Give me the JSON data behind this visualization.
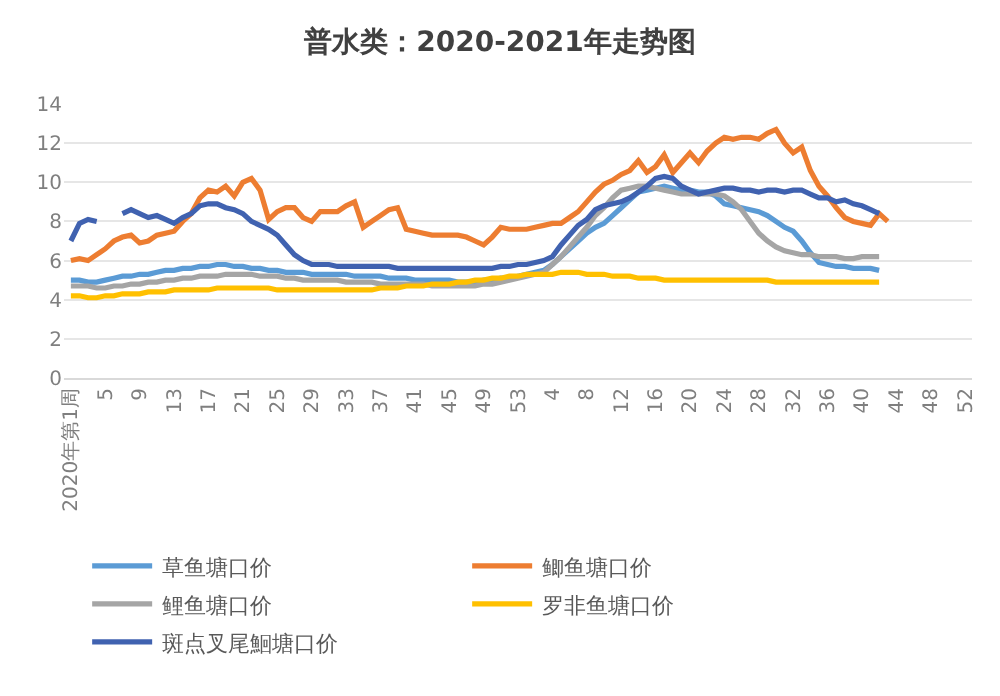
{
  "chart_data": {
    "type": "line",
    "title": "普水类：2020-2021年走势图",
    "categories": [
      "2020年第1周",
      null,
      null,
      null,
      "5",
      null,
      null,
      null,
      "9",
      null,
      null,
      null,
      "13",
      null,
      null,
      null,
      "17",
      null,
      null,
      null,
      "21",
      null,
      null,
      null,
      "25",
      null,
      null,
      null,
      "29",
      null,
      null,
      null,
      "33",
      null,
      null,
      null,
      "37",
      null,
      null,
      null,
      "41",
      null,
      null,
      null,
      "45",
      null,
      null,
      null,
      "49",
      null,
      null,
      null,
      "53",
      null,
      null,
      null,
      "4",
      null,
      null,
      null,
      "8",
      null,
      null,
      null,
      "12",
      null,
      null,
      null,
      "16",
      null,
      null,
      null,
      "20",
      null,
      null,
      null,
      "24",
      null,
      null,
      null,
      "28",
      null,
      null,
      null,
      "32",
      null,
      null,
      null,
      "36",
      null,
      null,
      null,
      "40",
      null,
      null,
      null,
      "44",
      null,
      null,
      null,
      "48",
      null,
      null,
      null,
      "52"
    ],
    "series": [
      {
        "name": "草鱼塘口价",
        "color": "#5b9bd5",
        "values": [
          5.0,
          5.0,
          4.9,
          4.9,
          5.0,
          5.1,
          5.2,
          5.2,
          5.3,
          5.3,
          5.4,
          5.5,
          5.5,
          5.6,
          5.6,
          5.7,
          5.7,
          5.8,
          5.8,
          5.7,
          5.7,
          5.6,
          5.6,
          5.5,
          5.5,
          5.4,
          5.4,
          5.4,
          5.3,
          5.3,
          5.3,
          5.3,
          5.3,
          5.2,
          5.2,
          5.2,
          5.2,
          5.1,
          5.1,
          5.1,
          5.0,
          5.0,
          5.0,
          5.0,
          5.0,
          4.9,
          4.9,
          4.9,
          5.0,
          5.0,
          5.1,
          5.1,
          5.2,
          5.3,
          5.4,
          5.5,
          5.8,
          6.2,
          6.6,
          7.0,
          7.4,
          7.7,
          7.9,
          8.3,
          8.7,
          9.1,
          9.5,
          9.6,
          9.7,
          9.8,
          9.7,
          9.6,
          9.6,
          9.5,
          9.5,
          9.3,
          8.9,
          8.8,
          8.7,
          8.6,
          8.5,
          8.3,
          8.0,
          7.7,
          7.5,
          7.0,
          6.4,
          5.9,
          5.8,
          5.7,
          5.7,
          5.6,
          5.6,
          5.6,
          5.5,
          null,
          null,
          null,
          null,
          null,
          null,
          null,
          null,
          null,
          null
        ]
      },
      {
        "name": "鲫鱼塘口价",
        "color": "#ed7d31",
        "values": [
          6.0,
          6.1,
          6.0,
          6.3,
          6.6,
          7.0,
          7.2,
          7.3,
          6.9,
          7.0,
          7.3,
          7.4,
          7.5,
          8.0,
          8.4,
          9.2,
          9.6,
          9.5,
          9.8,
          9.3,
          10.0,
          10.2,
          9.6,
          8.1,
          8.5,
          8.7,
          8.7,
          8.2,
          8.0,
          8.5,
          8.5,
          8.5,
          8.8,
          9.0,
          7.7,
          8.0,
          8.3,
          8.6,
          8.7,
          7.6,
          7.5,
          7.4,
          7.3,
          7.3,
          7.3,
          7.3,
          7.2,
          7.0,
          6.8,
          7.2,
          7.7,
          7.6,
          7.6,
          7.6,
          7.7,
          7.8,
          7.9,
          7.9,
          8.2,
          8.5,
          9.0,
          9.5,
          9.9,
          10.1,
          10.4,
          10.6,
          11.1,
          10.5,
          10.8,
          11.4,
          10.5,
          11.0,
          11.5,
          11.0,
          11.6,
          12.0,
          12.3,
          12.2,
          12.3,
          12.3,
          12.2,
          12.5,
          12.7,
          12.0,
          11.5,
          11.8,
          10.6,
          9.8,
          9.3,
          8.7,
          8.2,
          8.0,
          7.9,
          7.8,
          8.4,
          8.0,
          null,
          null,
          null,
          null,
          null,
          null,
          null,
          null,
          null
        ]
      },
      {
        "name": "鲤鱼塘口价",
        "color": "#a5a5a5",
        "values": [
          4.7,
          4.7,
          4.7,
          4.6,
          4.6,
          4.7,
          4.7,
          4.8,
          4.8,
          4.9,
          4.9,
          5.0,
          5.0,
          5.1,
          5.1,
          5.2,
          5.2,
          5.2,
          5.3,
          5.3,
          5.3,
          5.3,
          5.2,
          5.2,
          5.2,
          5.1,
          5.1,
          5.0,
          5.0,
          5.0,
          5.0,
          5.0,
          4.9,
          4.9,
          4.9,
          4.9,
          4.8,
          4.8,
          4.8,
          4.8,
          4.8,
          4.8,
          4.7,
          4.7,
          4.7,
          4.7,
          4.7,
          4.7,
          4.8,
          4.8,
          4.9,
          5.0,
          5.1,
          5.2,
          5.3,
          5.4,
          5.8,
          6.2,
          6.7,
          7.2,
          7.7,
          8.3,
          8.7,
          9.2,
          9.6,
          9.7,
          9.8,
          9.8,
          9.7,
          9.6,
          9.5,
          9.4,
          9.4,
          9.4,
          9.4,
          9.4,
          9.3,
          9.0,
          8.6,
          8.0,
          7.4,
          7.0,
          6.7,
          6.5,
          6.4,
          6.3,
          6.3,
          6.2,
          6.2,
          6.2,
          6.1,
          6.1,
          6.2,
          6.2,
          6.2,
          null,
          null,
          null,
          null,
          null,
          null,
          null,
          null,
          null,
          null
        ]
      },
      {
        "name": "罗非鱼塘口价",
        "color": "#ffc000",
        "values": [
          4.2,
          4.2,
          4.1,
          4.1,
          4.2,
          4.2,
          4.3,
          4.3,
          4.3,
          4.4,
          4.4,
          4.4,
          4.5,
          4.5,
          4.5,
          4.5,
          4.5,
          4.6,
          4.6,
          4.6,
          4.6,
          4.6,
          4.6,
          4.6,
          4.5,
          4.5,
          4.5,
          4.5,
          4.5,
          4.5,
          4.5,
          4.5,
          4.5,
          4.5,
          4.5,
          4.5,
          4.6,
          4.6,
          4.6,
          4.7,
          4.7,
          4.7,
          4.8,
          4.8,
          4.8,
          4.9,
          4.9,
          5.0,
          5.0,
          5.1,
          5.1,
          5.2,
          5.2,
          5.3,
          5.3,
          5.3,
          5.3,
          5.4,
          5.4,
          5.4,
          5.3,
          5.3,
          5.3,
          5.2,
          5.2,
          5.2,
          5.1,
          5.1,
          5.1,
          5.0,
          5.0,
          5.0,
          5.0,
          5.0,
          5.0,
          5.0,
          5.0,
          5.0,
          5.0,
          5.0,
          5.0,
          5.0,
          4.9,
          4.9,
          4.9,
          4.9,
          4.9,
          4.9,
          4.9,
          4.9,
          4.9,
          4.9,
          4.9,
          4.9,
          4.9,
          null,
          null,
          null,
          null,
          null,
          null,
          null,
          null,
          null,
          null
        ]
      },
      {
        "name": "斑点叉尾鮰塘口价",
        "color": "#4062b0",
        "values": [
          7.0,
          7.9,
          8.1,
          8.0,
          null,
          null,
          8.4,
          8.6,
          8.4,
          8.2,
          8.3,
          8.1,
          7.9,
          8.2,
          8.4,
          8.8,
          8.9,
          8.9,
          8.7,
          8.6,
          8.4,
          8.0,
          7.8,
          7.6,
          7.3,
          6.8,
          6.3,
          6.0,
          5.8,
          5.8,
          5.8,
          5.7,
          5.7,
          5.7,
          5.7,
          5.7,
          5.7,
          5.7,
          5.6,
          5.6,
          5.6,
          5.6,
          5.6,
          5.6,
          5.6,
          5.6,
          5.6,
          5.6,
          5.6,
          5.6,
          5.7,
          5.7,
          5.8,
          5.8,
          5.9,
          6.0,
          6.2,
          6.8,
          7.3,
          7.8,
          8.1,
          8.6,
          8.8,
          8.9,
          9.0,
          9.2,
          9.5,
          9.8,
          10.2,
          10.3,
          10.2,
          9.8,
          9.6,
          9.4,
          9.5,
          9.6,
          9.7,
          9.7,
          9.6,
          9.6,
          9.5,
          9.6,
          9.6,
          9.5,
          9.6,
          9.6,
          9.4,
          9.2,
          9.2,
          9.0,
          9.1,
          8.9,
          8.8,
          8.6,
          8.4,
          null,
          null,
          null,
          null,
          null,
          null,
          null,
          null,
          null,
          null
        ]
      }
    ],
    "ylim": [
      0,
      14
    ],
    "yticks": [
      0,
      2,
      4,
      6,
      8,
      10,
      12,
      14
    ],
    "grid": "y",
    "legend": "bottom",
    "line_style": "solid"
  }
}
